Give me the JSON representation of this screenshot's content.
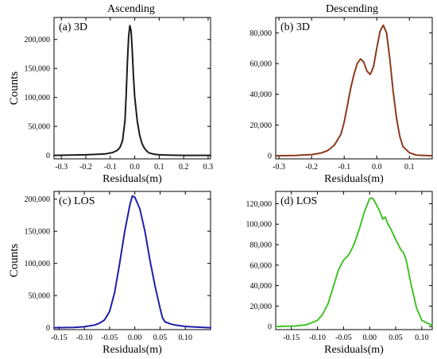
{
  "column_titles": [
    "Ascending",
    "Descending"
  ],
  "chart_data": [
    {
      "type": "line",
      "panel_label": "(a) 3D",
      "xlabel": "Residuals(m)",
      "ylabel": "Counts",
      "xlim": [
        -0.33,
        0.31
      ],
      "ylim": [
        -6000,
        238000
      ],
      "xticks": [
        -0.3,
        -0.2,
        -0.1,
        0.0,
        0.1,
        0.2,
        0.3
      ],
      "xtick_labels": [
        "-0.3",
        "-0.2",
        "-0.1",
        "0.0",
        "0.1",
        "0.2",
        "0.3"
      ],
      "yticks": [
        0,
        50000,
        100000,
        150000,
        200000
      ],
      "ytick_labels": [
        "0",
        "50,000",
        "100,000",
        "150,000",
        "200,000"
      ],
      "grid": false,
      "series": [
        {
          "color": "#1a1a1a",
          "x": [
            -0.33,
            -0.2,
            -0.12,
            -0.09,
            -0.07,
            -0.06,
            -0.05,
            -0.04,
            -0.035,
            -0.03,
            -0.025,
            -0.02,
            -0.015,
            -0.01,
            -0.005,
            0.0,
            0.01,
            0.02,
            0.03,
            0.04,
            0.05,
            0.06,
            0.08,
            0.1,
            0.15,
            0.2,
            0.31
          ],
          "y": [
            0,
            1000,
            2500,
            5000,
            9000,
            14000,
            25000,
            60000,
            105000,
            160000,
            205000,
            224000,
            215000,
            180000,
            135000,
            100000,
            60000,
            35000,
            20000,
            12000,
            7000,
            4000,
            2000,
            1000,
            300,
            0,
            0
          ]
        }
      ]
    },
    {
      "type": "line",
      "panel_label": "(b) 3D",
      "xlabel": "Residuals(m)",
      "ylabel": "",
      "xlim": [
        -0.31,
        0.17
      ],
      "ylim": [
        -2000,
        90000
      ],
      "xticks": [
        -0.3,
        -0.2,
        -0.1,
        0.0,
        0.1
      ],
      "xtick_labels": [
        "-0.3",
        "-0.2",
        "-0.1",
        "0.0",
        "0.1"
      ],
      "yticks": [
        0,
        20000,
        40000,
        60000,
        80000
      ],
      "ytick_labels": [
        "0",
        "20,000",
        "40,000",
        "60,000",
        "80,000"
      ],
      "grid": false,
      "series": [
        {
          "color": "#8b3a1e",
          "x": [
            -0.31,
            -0.25,
            -0.2,
            -0.17,
            -0.15,
            -0.13,
            -0.11,
            -0.1,
            -0.09,
            -0.08,
            -0.07,
            -0.06,
            -0.05,
            -0.04,
            -0.03,
            -0.02,
            -0.01,
            0.0,
            0.01,
            0.02,
            0.03,
            0.04,
            0.05,
            0.06,
            0.07,
            0.08,
            0.1,
            0.12,
            0.17
          ],
          "y": [
            0,
            200,
            800,
            1800,
            3500,
            7000,
            14000,
            22000,
            33000,
            44000,
            53000,
            60000,
            63000,
            61000,
            55000,
            53000,
            58000,
            70000,
            81000,
            85000,
            80000,
            63000,
            42000,
            25000,
            13000,
            6000,
            2000,
            500,
            0
          ]
        }
      ]
    },
    {
      "type": "line",
      "panel_label": "(c) LOS",
      "xlabel": "Residuals(m)",
      "ylabel": "Counts",
      "xlim": [
        -0.16,
        0.15
      ],
      "ylim": [
        -3000,
        212000
      ],
      "xticks": [
        -0.15,
        -0.1,
        -0.05,
        0.0,
        0.05,
        0.1
      ],
      "xtick_labels": [
        "-0.15",
        "-0.10",
        "-0.05",
        "0.00",
        "0.05",
        "0.10"
      ],
      "yticks": [
        0,
        50000,
        100000,
        150000,
        200000
      ],
      "ytick_labels": [
        "0",
        "50,000",
        "100,000",
        "150,000",
        "200,000"
      ],
      "grid": false,
      "series": [
        {
          "color": "#1f1fa8",
          "x": [
            -0.16,
            -0.12,
            -0.1,
            -0.08,
            -0.07,
            -0.06,
            -0.05,
            -0.04,
            -0.03,
            -0.02,
            -0.01,
            -0.005,
            0.0,
            0.01,
            0.02,
            0.03,
            0.04,
            0.05,
            0.055,
            0.06,
            0.07,
            0.08,
            0.1,
            0.12,
            0.15
          ],
          "y": [
            0,
            500,
            1500,
            4000,
            7000,
            12000,
            25000,
            55000,
            100000,
            150000,
            190000,
            205000,
            203000,
            185000,
            150000,
            105000,
            65000,
            30000,
            15000,
            9000,
            6000,
            4000,
            2000,
            1000,
            0
          ]
        }
      ]
    },
    {
      "type": "line",
      "panel_label": "(d) LOS",
      "xlabel": "Residuals(m)",
      "ylabel": "",
      "xlim": [
        -0.18,
        0.12
      ],
      "ylim": [
        -3000,
        132000
      ],
      "xticks": [
        -0.15,
        -0.1,
        -0.05,
        0.0,
        0.05,
        0.1
      ],
      "xtick_labels": [
        "-0.15",
        "-0.10",
        "-0.05",
        "0.00",
        "0.05",
        "0.10"
      ],
      "yticks": [
        0,
        20000,
        40000,
        60000,
        80000,
        100000,
        120000
      ],
      "ytick_labels": [
        "0",
        "20,000",
        "40,000",
        "60,000",
        "80,000",
        "100,000",
        "120,000"
      ],
      "grid": false,
      "series": [
        {
          "color": "#44c229",
          "x": [
            -0.18,
            -0.14,
            -0.12,
            -0.1,
            -0.09,
            -0.08,
            -0.07,
            -0.06,
            -0.05,
            -0.04,
            -0.03,
            -0.02,
            -0.01,
            0.0,
            0.005,
            0.01,
            0.02,
            0.025,
            0.03,
            0.035,
            0.04,
            0.05,
            0.06,
            0.065,
            0.07,
            0.08,
            0.09,
            0.1,
            0.12
          ],
          "y": [
            0,
            600,
            2000,
            6000,
            12000,
            22000,
            38000,
            55000,
            65000,
            70000,
            80000,
            95000,
            112000,
            125000,
            125500,
            122000,
            112000,
            105000,
            107000,
            100000,
            96000,
            85000,
            75000,
            72000,
            65000,
            40000,
            18000,
            6000,
            1000
          ]
        }
      ]
    }
  ]
}
